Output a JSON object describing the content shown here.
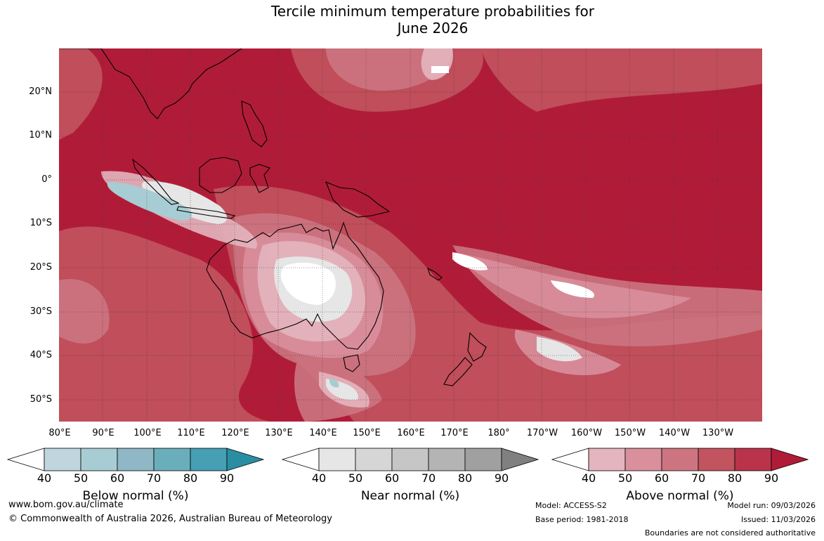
{
  "title": {
    "line1": "Tercile minimum temperature probabilities for",
    "line2": "June 2026"
  },
  "map": {
    "region": "Australia, Maritime Continent and western Pacific",
    "lat_labels": [
      "20°N",
      "10°N",
      "0°",
      "10°S",
      "20°S",
      "30°S",
      "40°S",
      "50°S"
    ],
    "lon_labels": [
      "80°E",
      "90°E",
      "100°E",
      "110°E",
      "120°E",
      "130°E",
      "140°E",
      "150°E",
      "160°E",
      "170°E",
      "180°",
      "170°W",
      "160°W",
      "150°W",
      "140°W",
      "130°W"
    ],
    "dominant_category": "Above normal 80-90%+"
  },
  "colorbars": [
    {
      "title": "Below normal (%)",
      "ticks": [
        "40",
        "50",
        "60",
        "70",
        "80",
        "90"
      ],
      "colors": [
        "#ffffff",
        "#bfd6de",
        "#a8ccd3",
        "#8fb7c6",
        "#6aaebb",
        "#469fb3",
        "#2a8ea3"
      ]
    },
    {
      "title": "Near normal (%)",
      "ticks": [
        "40",
        "50",
        "60",
        "70",
        "80",
        "90"
      ],
      "colors": [
        "#ffffff",
        "#e6e6e6",
        "#d6d6d6",
        "#c6c6c6",
        "#b4b4b4",
        "#a0a0a0",
        "#808080"
      ]
    },
    {
      "title": "Above normal (%)",
      "ticks": [
        "40",
        "50",
        "60",
        "70",
        "80",
        "90"
      ],
      "colors": [
        "#ffffff",
        "#e4b5be",
        "#d98f9c",
        "#cc7581",
        "#c2545f",
        "#b9334a",
        "#b01c38"
      ]
    }
  ],
  "footer": {
    "website": "www.bom.gov.au/climate",
    "copyright": "© Commonwealth of Australia 2026, Australian Bureau of Meteorology",
    "model": "Model: ACCESS-S2",
    "base_period": "Base period: 1981-2018",
    "model_run": "Model run: 09/03/2026",
    "issued": "Issued: 11/03/2026",
    "disclaimer": "Boundaries are not considered authoritative"
  }
}
